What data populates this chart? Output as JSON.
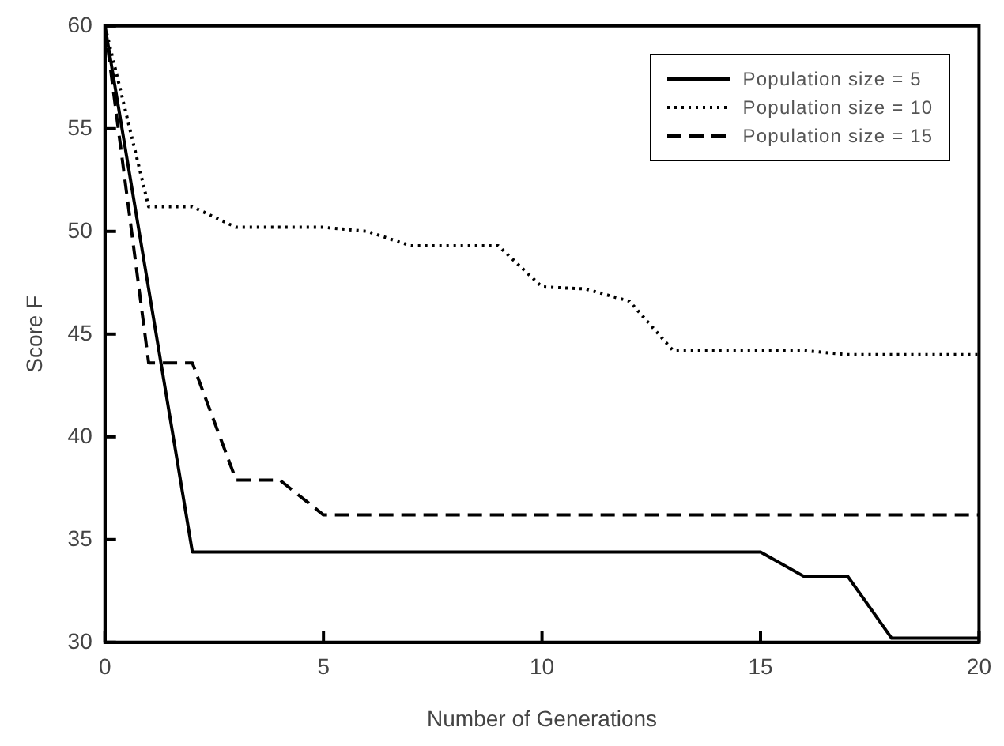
{
  "chart_data": {
    "type": "line",
    "xlabel": "Number of Generations",
    "ylabel": "Score F",
    "xlim": [
      0,
      20
    ],
    "xticks": [
      0,
      5,
      10,
      15,
      20
    ],
    "ylim": [
      30,
      60
    ],
    "yticks": [
      30,
      35,
      40,
      45,
      50,
      55,
      60
    ],
    "grid": false,
    "legend": "top right",
    "marker": "none",
    "series": [
      {
        "name": "Population size = 5",
        "color": "#000000",
        "line_style": "solid",
        "x": [
          0,
          2,
          15,
          16,
          17,
          18,
          20
        ],
        "values": [
          60,
          34.4,
          34.4,
          33.2,
          33.2,
          30.2,
          30.2
        ]
      },
      {
        "name": "Population size = 10",
        "color": "#000000",
        "line_style": "dotted",
        "x": [
          0,
          1,
          2,
          3,
          5,
          6,
          7,
          9,
          10,
          11,
          12,
          13,
          16,
          17,
          20
        ],
        "values": [
          60,
          51.2,
          51.2,
          50.2,
          50.2,
          50,
          49.3,
          49.3,
          47.3,
          47.2,
          46.6,
          44.2,
          44.2,
          44,
          44
        ]
      },
      {
        "name": "Population size = 15",
        "color": "#000000",
        "line_style": "dashed",
        "x": [
          0,
          1,
          2,
          3,
          4,
          5,
          20
        ],
        "values": [
          60,
          43.6,
          43.6,
          37.9,
          37.9,
          36.2,
          36.2
        ]
      }
    ]
  }
}
